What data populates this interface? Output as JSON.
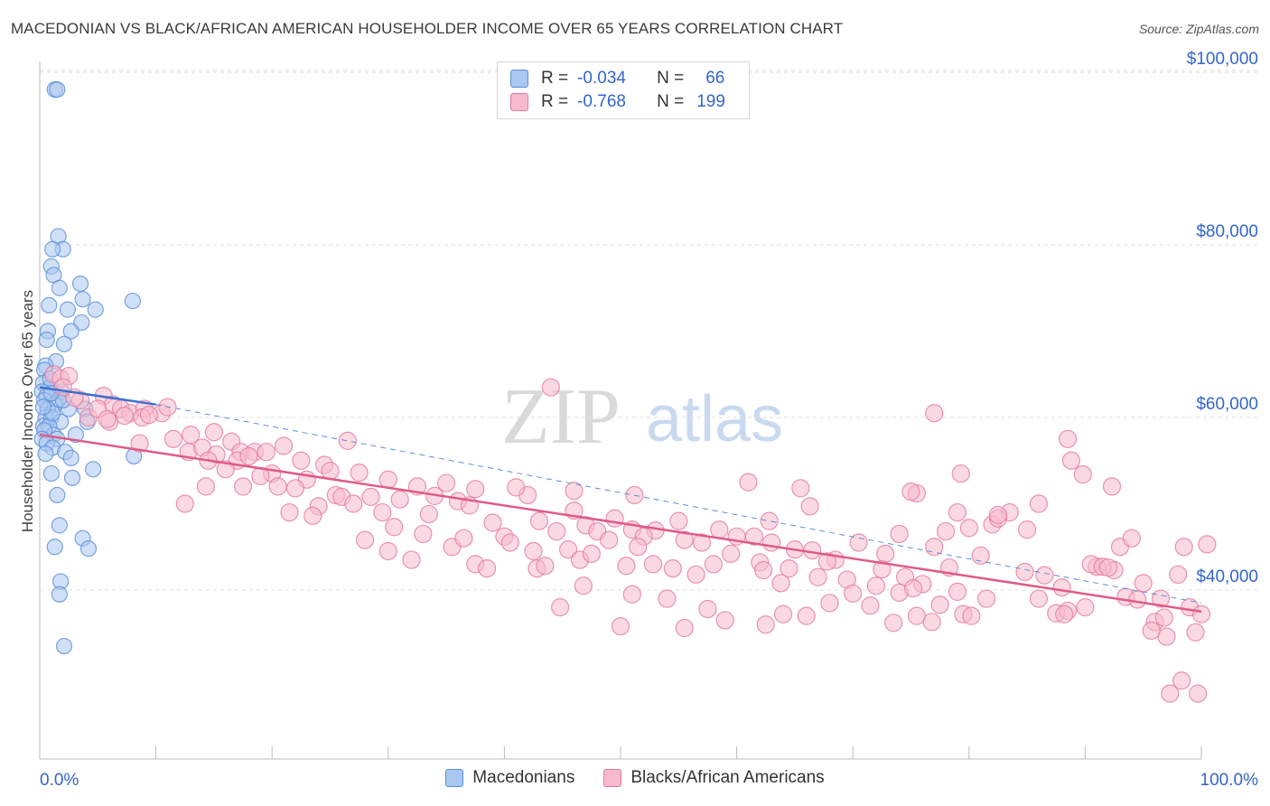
{
  "title": "MACEDONIAN VS BLACK/AFRICAN AMERICAN HOUSEHOLDER INCOME OVER 65 YEARS CORRELATION CHART",
  "source": "Source: ZipAtlas.com",
  "watermark": {
    "zip": "ZIP",
    "atlas": "atlas"
  },
  "legend_top": {
    "rows": [
      {
        "r_label": "R =",
        "r_value": "-0.034",
        "n_label": "N =",
        "n_value": "66",
        "color": "#a9c7f0",
        "stroke": "#5b8fd8"
      },
      {
        "r_label": "R =",
        "r_value": "-0.768",
        "n_label": "N =",
        "n_value": "199",
        "color": "#f7b9cc",
        "stroke": "#e47a9c"
      }
    ]
  },
  "legend_bottom": {
    "items": [
      {
        "label": "Macedonians",
        "color": "#a9c7f0",
        "stroke": "#5b8fd8"
      },
      {
        "label": "Blacks/African Americans",
        "color": "#f7b9cc",
        "stroke": "#e47a9c"
      }
    ]
  },
  "chart_data": {
    "type": "scatter",
    "ylabel": "Householder Income Over 65 years",
    "x_tick_labels": [
      "0.0%",
      "100.0%"
    ],
    "xlim": [
      0,
      100
    ],
    "ylim": [
      22000,
      102000
    ],
    "y_ticks": [
      {
        "value": 40000,
        "label": "$40,000"
      },
      {
        "value": 60000,
        "label": "$60,000"
      },
      {
        "value": 80000,
        "label": "$80,000"
      },
      {
        "value": 100000,
        "label": "$100,000"
      }
    ],
    "grid": true,
    "colors": {
      "blue": "#5b8fd8",
      "blue_fill": "#a9c7f0",
      "pink": "#e05a8a",
      "pink_fill": "#f7b9cc",
      "grid": "#dedede",
      "tick_label": "#3366cc"
    },
    "series": [
      {
        "name": "Macedonians",
        "trend": {
          "x0": 0,
          "y0": 63500,
          "x1": 10,
          "y1": 61500,
          "dashed_to_x": 100,
          "dashed_to_y": 38500
        },
        "points": [
          [
            1.3,
            98000
          ],
          [
            1.5,
            98000
          ],
          [
            1.6,
            81000
          ],
          [
            2.0,
            79500
          ],
          [
            1.1,
            79500
          ],
          [
            1.0,
            77500
          ],
          [
            1.2,
            76500
          ],
          [
            3.5,
            75500
          ],
          [
            1.7,
            75000
          ],
          [
            3.7,
            73700
          ],
          [
            8.0,
            73500
          ],
          [
            0.8,
            73000
          ],
          [
            2.4,
            72500
          ],
          [
            4.8,
            72500
          ],
          [
            3.6,
            71000
          ],
          [
            0.7,
            70000
          ],
          [
            2.7,
            70000
          ],
          [
            2.1,
            68500
          ],
          [
            0.6,
            69000
          ],
          [
            1.4,
            66500
          ],
          [
            0.5,
            66000
          ],
          [
            0.4,
            65500
          ],
          [
            0.3,
            64000
          ],
          [
            0.9,
            63500
          ],
          [
            1.9,
            63000
          ],
          [
            0.2,
            63000
          ],
          [
            0.6,
            62500
          ],
          [
            1.6,
            62000
          ],
          [
            0.4,
            62000
          ],
          [
            1.3,
            61500
          ],
          [
            0.7,
            61000
          ],
          [
            2.5,
            61000
          ],
          [
            3.9,
            61000
          ],
          [
            0.5,
            60000
          ],
          [
            1.0,
            60000
          ],
          [
            4.1,
            59500
          ],
          [
            1.8,
            59500
          ],
          [
            0.3,
            59000
          ],
          [
            0.8,
            59000
          ],
          [
            1.2,
            58000
          ],
          [
            0.4,
            58500
          ],
          [
            3.1,
            58000
          ],
          [
            0.2,
            57500
          ],
          [
            1.5,
            57500
          ],
          [
            0.6,
            57000
          ],
          [
            1.1,
            56500
          ],
          [
            2.2,
            56000
          ],
          [
            0.5,
            55800
          ],
          [
            2.7,
            55300
          ],
          [
            8.1,
            55500
          ],
          [
            4.6,
            54000
          ],
          [
            1.0,
            53500
          ],
          [
            2.8,
            53000
          ],
          [
            1.5,
            51000
          ],
          [
            1.7,
            47500
          ],
          [
            3.7,
            46000
          ],
          [
            1.3,
            45000
          ],
          [
            4.2,
            44800
          ],
          [
            1.8,
            41000
          ],
          [
            1.7,
            39500
          ],
          [
            2.1,
            33500
          ],
          [
            0.9,
            64500
          ],
          [
            1.1,
            60500
          ],
          [
            2.0,
            62000
          ],
          [
            0.3,
            61200
          ],
          [
            1.0,
            62800
          ]
        ]
      },
      {
        "name": "Blacks/African Americans",
        "trend": {
          "x0": 0,
          "y0": 58000,
          "x1": 100,
          "y1": 37500
        },
        "points": [
          [
            1.2,
            65000
          ],
          [
            1.8,
            64500
          ],
          [
            2.5,
            64800
          ],
          [
            2.0,
            63500
          ],
          [
            3.5,
            62000
          ],
          [
            5.5,
            62500
          ],
          [
            6.3,
            61500
          ],
          [
            7.0,
            61000
          ],
          [
            7.8,
            60500
          ],
          [
            9.0,
            61000
          ],
          [
            10.5,
            60500
          ],
          [
            4.2,
            60000
          ],
          [
            6.0,
            59500
          ],
          [
            7.3,
            60200
          ],
          [
            8.8,
            60000
          ],
          [
            3.0,
            62300
          ],
          [
            5.0,
            61000
          ],
          [
            11.0,
            61200
          ],
          [
            9.4,
            60300
          ],
          [
            5.8,
            59800
          ],
          [
            8.6,
            57000
          ],
          [
            11.5,
            57500
          ],
          [
            13.0,
            58000
          ],
          [
            15.0,
            58300
          ],
          [
            16.5,
            57200
          ],
          [
            17.3,
            56000
          ],
          [
            18.5,
            56000
          ],
          [
            19.5,
            56000
          ],
          [
            21.0,
            56700
          ],
          [
            26.5,
            57300
          ],
          [
            12.8,
            56000
          ],
          [
            14.0,
            56500
          ],
          [
            15.2,
            55700
          ],
          [
            17.0,
            55000
          ],
          [
            18.0,
            55500
          ],
          [
            14.5,
            55000
          ],
          [
            22.5,
            55000
          ],
          [
            24.5,
            54500
          ],
          [
            25.0,
            53800
          ],
          [
            27.5,
            53600
          ],
          [
            16.0,
            54000
          ],
          [
            20.0,
            53500
          ],
          [
            23.0,
            52800
          ],
          [
            19.0,
            53200
          ],
          [
            30.0,
            52800
          ],
          [
            32.5,
            52000
          ],
          [
            35.0,
            52400
          ],
          [
            37.5,
            51700
          ],
          [
            42.0,
            51000
          ],
          [
            41.0,
            51900
          ],
          [
            14.3,
            52000
          ],
          [
            17.5,
            52000
          ],
          [
            20.5,
            52000
          ],
          [
            22.0,
            51800
          ],
          [
            25.5,
            51000
          ],
          [
            26.0,
            50800
          ],
          [
            28.5,
            50800
          ],
          [
            31.0,
            50500
          ],
          [
            34.0,
            50900
          ],
          [
            36.0,
            50300
          ],
          [
            27.0,
            50000
          ],
          [
            24.0,
            49700
          ],
          [
            29.5,
            49000
          ],
          [
            33.5,
            48800
          ],
          [
            37.0,
            49800
          ],
          [
            39.0,
            47800
          ],
          [
            43.0,
            48000
          ],
          [
            46.0,
            49200
          ],
          [
            47.0,
            47500
          ],
          [
            49.5,
            48300
          ],
          [
            12.5,
            50000
          ],
          [
            21.5,
            49000
          ],
          [
            23.5,
            48600
          ],
          [
            30.5,
            47300
          ],
          [
            33.0,
            46500
          ],
          [
            40.0,
            46200
          ],
          [
            44.5,
            46800
          ],
          [
            48.0,
            46800
          ],
          [
            51.0,
            47000
          ],
          [
            53.0,
            46900
          ],
          [
            28.0,
            45800
          ],
          [
            35.5,
            45000
          ],
          [
            36.5,
            46000
          ],
          [
            40.5,
            45500
          ],
          [
            42.5,
            44500
          ],
          [
            45.5,
            44700
          ],
          [
            49.0,
            45800
          ],
          [
            52.0,
            46200
          ],
          [
            55.5,
            45800
          ],
          [
            57.0,
            45500
          ],
          [
            30.0,
            44500
          ],
          [
            32.0,
            43500
          ],
          [
            37.5,
            43000
          ],
          [
            38.5,
            42500
          ],
          [
            42.8,
            42500
          ],
          [
            46.5,
            43500
          ],
          [
            50.5,
            42800
          ],
          [
            52.8,
            43000
          ],
          [
            54.5,
            42500
          ],
          [
            56.5,
            41800
          ],
          [
            47.5,
            44200
          ],
          [
            51.5,
            45000
          ],
          [
            55.0,
            48000
          ],
          [
            58.5,
            47000
          ],
          [
            60.0,
            46200
          ],
          [
            61.5,
            46200
          ],
          [
            63.0,
            45500
          ],
          [
            65.0,
            44700
          ],
          [
            66.5,
            44600
          ],
          [
            68.5,
            43500
          ],
          [
            58.0,
            43000
          ],
          [
            59.5,
            44200
          ],
          [
            62.0,
            43200
          ],
          [
            64.5,
            42500
          ],
          [
            67.0,
            41500
          ],
          [
            69.5,
            41200
          ],
          [
            72.0,
            40500
          ],
          [
            74.5,
            41500
          ],
          [
            76.0,
            40700
          ],
          [
            79.0,
            39800
          ],
          [
            70.5,
            45500
          ],
          [
            72.8,
            44200
          ],
          [
            74.0,
            46500
          ],
          [
            78.0,
            46800
          ],
          [
            80.0,
            47200
          ],
          [
            82.0,
            47600
          ],
          [
            83.5,
            49000
          ],
          [
            85.0,
            47000
          ],
          [
            82.5,
            48300
          ],
          [
            84.8,
            42100
          ],
          [
            43.5,
            42800
          ],
          [
            46.8,
            40500
          ],
          [
            51.0,
            39500
          ],
          [
            54.0,
            39000
          ],
          [
            57.5,
            37800
          ],
          [
            59.0,
            36500
          ],
          [
            62.5,
            36000
          ],
          [
            66.0,
            37000
          ],
          [
            68.0,
            38500
          ],
          [
            70.0,
            39600
          ],
          [
            44.8,
            38000
          ],
          [
            50.0,
            35800
          ],
          [
            55.5,
            35600
          ],
          [
            64.0,
            37200
          ],
          [
            71.5,
            38200
          ],
          [
            73.5,
            36200
          ],
          [
            75.5,
            37000
          ],
          [
            77.5,
            38300
          ],
          [
            79.5,
            37200
          ],
          [
            81.5,
            39000
          ],
          [
            86.0,
            39000
          ],
          [
            87.5,
            37300
          ],
          [
            88.5,
            37600
          ],
          [
            90.0,
            38000
          ],
          [
            91.0,
            42700
          ],
          [
            92.5,
            42300
          ],
          [
            93.0,
            45000
          ],
          [
            94.0,
            46000
          ],
          [
            95.0,
            40800
          ],
          [
            96.5,
            39000
          ],
          [
            86.5,
            41700
          ],
          [
            88.0,
            40300
          ],
          [
            90.5,
            43000
          ],
          [
            91.5,
            42700
          ],
          [
            92.0,
            42600
          ],
          [
            93.5,
            39200
          ],
          [
            94.5,
            38900
          ],
          [
            96.0,
            36300
          ],
          [
            97.0,
            34600
          ],
          [
            98.5,
            45000
          ],
          [
            99.0,
            38000
          ],
          [
            100.0,
            37200
          ],
          [
            99.5,
            35100
          ],
          [
            96.8,
            36800
          ],
          [
            98.0,
            41800
          ],
          [
            95.7,
            35300
          ],
          [
            97.3,
            28000
          ],
          [
            98.3,
            29500
          ],
          [
            99.7,
            28000
          ],
          [
            100.5,
            45300
          ],
          [
            88.5,
            57500
          ],
          [
            88.8,
            55000
          ],
          [
            89.8,
            53400
          ],
          [
            92.3,
            52000
          ],
          [
            79.3,
            53500
          ],
          [
            75.5,
            51200
          ],
          [
            75.0,
            51400
          ],
          [
            82.5,
            48700
          ],
          [
            77.0,
            45000
          ],
          [
            61.0,
            52500
          ],
          [
            62.8,
            48000
          ],
          [
            65.5,
            51800
          ],
          [
            66.3,
            49700
          ],
          [
            81.0,
            44000
          ],
          [
            78.3,
            42600
          ],
          [
            79.0,
            49000
          ],
          [
            77.0,
            60500
          ],
          [
            88.2,
            37200
          ],
          [
            86.0,
            50000
          ],
          [
            44.0,
            63500
          ],
          [
            46.0,
            51500
          ],
          [
            51.2,
            51000
          ],
          [
            62.3,
            42300
          ],
          [
            63.8,
            40800
          ],
          [
            67.8,
            43300
          ],
          [
            72.5,
            42400
          ],
          [
            74.0,
            39700
          ],
          [
            75.2,
            40200
          ],
          [
            76.8,
            36300
          ],
          [
            80.2,
            37000
          ]
        ]
      }
    ]
  }
}
